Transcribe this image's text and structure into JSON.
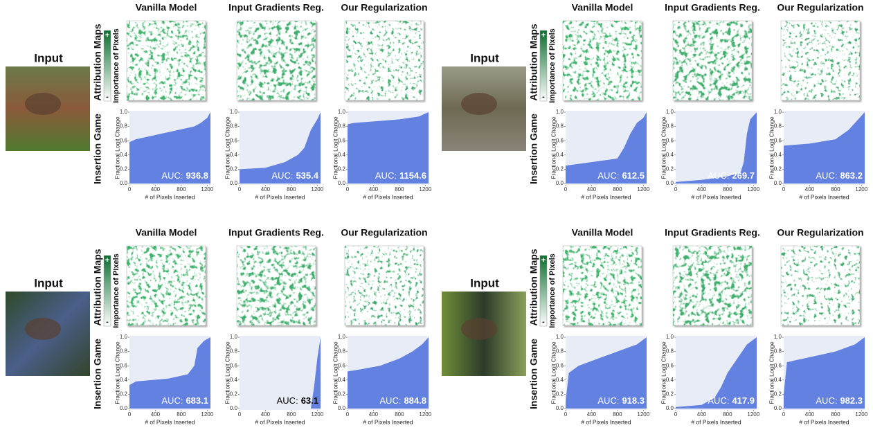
{
  "panels": [
    {
      "input": "Input",
      "attribution": "Attribution Maps",
      "insertion": "Insertion Game",
      "colorbar": "Importance of Pixels",
      "plus": "+",
      "minus": "-"
    },
    {
      "input": "Input",
      "attribution": "Attribution Maps",
      "insertion": "Insertion Game",
      "colorbar": "Importance of Pixels",
      "plus": "+",
      "minus": "-"
    },
    {
      "input": "Input",
      "attribution": "Attribution Maps",
      "insertion": "Insertion Game",
      "colorbar": "Importance of Pixels",
      "plus": "+",
      "minus": "-"
    },
    {
      "input": "Input",
      "attribution": "Attribution Maps",
      "insertion": "Insertion Game",
      "colorbar": "Importance of Pixels",
      "plus": "+",
      "minus": "-"
    }
  ],
  "chart_data": [
    {
      "type": "area",
      "title": "Vanilla Model",
      "x": [
        0,
        100,
        400,
        800,
        1000,
        1100,
        1200,
        1250
      ],
      "values": [
        0.58,
        0.62,
        0.68,
        0.76,
        0.8,
        0.85,
        0.92,
        1.0
      ],
      "color": "#6281e0",
      "xlim": [
        0,
        1250
      ],
      "ylim": [
        -0.02,
        1.02
      ],
      "xticks": [
        0,
        400,
        800,
        1200
      ],
      "yticks": [
        {
          "value": 0,
          "label": "0.0"
        },
        0.2,
        0.4,
        0.6,
        0.8,
        {
          "value": 1,
          "label": "1.0"
        }
      ],
      "xlabel": "# of Pixels Inserted",
      "ylabel": "Fractional Logit Change",
      "annotation_label": "AUC:",
      "annotation": 936.8,
      "annotation_color": "#ffffff"
    },
    {
      "type": "area",
      "title": "Input Gradients Reg.",
      "x": [
        0,
        400,
        700,
        900,
        1000,
        1100,
        1200,
        1250
      ],
      "values": [
        0.2,
        0.22,
        0.3,
        0.4,
        0.5,
        0.75,
        0.9,
        1.0
      ],
      "color": "#6281e0",
      "xlim": [
        0,
        1250
      ],
      "ylim": [
        -0.02,
        1.02
      ],
      "xticks": [
        0,
        400,
        800,
        1200
      ],
      "yticks": [
        {
          "value": 0,
          "label": "0.0"
        },
        0.2,
        0.4,
        0.6,
        0.8,
        {
          "value": 1,
          "label": "1.0"
        }
      ],
      "xlabel": "# of Pixels Inserted",
      "ylabel": "Fractional Logit Change",
      "annotation_label": "AUC:",
      "annotation": 535.4,
      "annotation_color": "#ffffff"
    },
    {
      "type": "area",
      "title": "Our Regularization",
      "x": [
        0,
        100,
        400,
        800,
        1100,
        1250
      ],
      "values": [
        0.83,
        0.85,
        0.87,
        0.9,
        0.94,
        1.0
      ],
      "color": "#6281e0",
      "xlim": [
        0,
        1250
      ],
      "ylim": [
        -0.02,
        1.02
      ],
      "xticks": [
        0,
        400,
        800,
        1200
      ],
      "yticks": [
        {
          "value": 0,
          "label": "0.0"
        },
        0.2,
        0.4,
        0.6,
        0.8,
        {
          "value": 1,
          "label": "1.0"
        }
      ],
      "xlabel": "# of Pixels Inserted",
      "ylabel": "Fractional Logit Change",
      "annotation_label": "AUC:",
      "annotation": 1154.6,
      "annotation_color": "#ffffff"
    },
    {
      "type": "area",
      "title": "Vanilla Model",
      "x": [
        0,
        400,
        800,
        900,
        1000,
        1100,
        1200,
        1250
      ],
      "values": [
        0.25,
        0.3,
        0.35,
        0.5,
        0.7,
        0.85,
        0.92,
        1.0
      ],
      "color": "#6281e0",
      "xlim": [
        0,
        1250
      ],
      "ylim": [
        -0.02,
        1.02
      ],
      "xticks": [
        0,
        400,
        800,
        1200
      ],
      "yticks": [
        {
          "value": 0,
          "label": "0.0"
        },
        0.2,
        0.4,
        0.6,
        0.8,
        {
          "value": 1,
          "label": "1.0"
        }
      ],
      "xlabel": "# of Pixels Inserted",
      "ylabel": "Fractional Logit Change",
      "annotation_label": "AUC:",
      "annotation": 612.5,
      "annotation_color": "#ffffff"
    },
    {
      "type": "area",
      "title": "Input Gradients Reg.",
      "x": [
        0,
        400,
        800,
        1000,
        1050,
        1100,
        1150,
        1250
      ],
      "values": [
        0.02,
        0.05,
        0.1,
        0.15,
        0.3,
        0.7,
        0.9,
        1.0
      ],
      "color": "#6281e0",
      "xlim": [
        0,
        1250
      ],
      "ylim": [
        -0.02,
        1.02
      ],
      "xticks": [
        0,
        400,
        800,
        1200
      ],
      "yticks": [
        {
          "value": 0,
          "label": "0.0"
        },
        0.2,
        0.4,
        0.6,
        0.8,
        {
          "value": 1,
          "label": "1.0"
        }
      ],
      "xlabel": "# of Pixels Inserted",
      "ylabel": "Fractional Logit Change",
      "annotation_label": "AUC:",
      "annotation": 269.7,
      "annotation_color": "#ffffff"
    },
    {
      "type": "area",
      "title": "Our Regularization",
      "x": [
        0,
        400,
        800,
        1000,
        1100,
        1200,
        1250
      ],
      "values": [
        0.53,
        0.56,
        0.62,
        0.75,
        0.85,
        0.95,
        1.0
      ],
      "color": "#6281e0",
      "xlim": [
        0,
        1250
      ],
      "ylim": [
        -0.02,
        1.02
      ],
      "xticks": [
        0,
        400,
        800,
        1200
      ],
      "yticks": [
        {
          "value": 0,
          "label": "0.0"
        },
        0.2,
        0.4,
        0.6,
        0.8,
        {
          "value": 1,
          "label": "1.0"
        }
      ],
      "xlabel": "# of Pixels Inserted",
      "ylabel": "Fractional Logit Change",
      "annotation_label": "AUC:",
      "annotation": 863.2,
      "annotation_color": "#ffffff"
    },
    {
      "type": "area",
      "title": "Vanilla Model",
      "x": [
        0,
        100,
        600,
        900,
        1000,
        1050,
        1150,
        1250
      ],
      "values": [
        0.33,
        0.38,
        0.42,
        0.48,
        0.6,
        0.85,
        0.95,
        1.0
      ],
      "color": "#6281e0",
      "xlim": [
        0,
        1250
      ],
      "ylim": [
        -0.02,
        1.02
      ],
      "xticks": [
        0,
        400,
        800,
        1200
      ],
      "yticks": [
        {
          "value": 0,
          "label": "0.0"
        },
        0.2,
        0.4,
        0.6,
        0.8,
        {
          "value": 1,
          "label": "1.0"
        }
      ],
      "xlabel": "# of Pixels Inserted",
      "ylabel": "Fractional Logit Change",
      "annotation_label": "AUC:",
      "annotation": 683.1,
      "annotation_color": "#ffffff"
    },
    {
      "type": "area",
      "title": "Input Gradients Reg.",
      "x": [
        0,
        1100,
        1150,
        1200,
        1250
      ],
      "values": [
        0,
        0,
        0.3,
        0.7,
        1.0
      ],
      "color": "#6281e0",
      "xlim": [
        0,
        1250
      ],
      "ylim": [
        -0.02,
        1.02
      ],
      "xticks": [
        0,
        400,
        800,
        1200
      ],
      "yticks": [
        {
          "value": 0,
          "label": "0.0"
        },
        0.2,
        0.4,
        0.6,
        0.8,
        {
          "value": 1,
          "label": "1.0"
        }
      ],
      "xlabel": "# of Pixels Inserted",
      "ylabel": "Fractional Logit Change",
      "annotation_label": "AUC:",
      "annotation": 63.1,
      "annotation_color": "#000000"
    },
    {
      "type": "area",
      "title": "Our Regularization",
      "x": [
        0,
        200,
        500,
        800,
        1000,
        1150,
        1250
      ],
      "values": [
        0.52,
        0.55,
        0.6,
        0.7,
        0.8,
        0.9,
        1.0
      ],
      "color": "#6281e0",
      "xlim": [
        0,
        1250
      ],
      "ylim": [
        -0.02,
        1.02
      ],
      "xticks": [
        0,
        400,
        800,
        1200
      ],
      "yticks": [
        {
          "value": 0,
          "label": "0.0"
        },
        0.2,
        0.4,
        0.6,
        0.8,
        {
          "value": 1,
          "label": "1.0"
        }
      ],
      "xlabel": "# of Pixels Inserted",
      "ylabel": "Fractional Logit Change",
      "annotation_label": "AUC:",
      "annotation": 884.8,
      "annotation_color": "#ffffff"
    },
    {
      "type": "area",
      "title": "Vanilla Model",
      "x": [
        0,
        50,
        200,
        500,
        800,
        1100,
        1250
      ],
      "values": [
        0.1,
        0.5,
        0.6,
        0.7,
        0.8,
        0.9,
        1.0
      ],
      "color": "#6281e0",
      "xlim": [
        0,
        1250
      ],
      "ylim": [
        -0.02,
        1.02
      ],
      "xticks": [
        0,
        400,
        800,
        1200
      ],
      "yticks": [
        {
          "value": 0,
          "label": "0.0"
        },
        0.2,
        0.4,
        0.6,
        0.8,
        {
          "value": 1,
          "label": "1.0"
        }
      ],
      "xlabel": "# of Pixels Inserted",
      "ylabel": "Fractional Logit Change",
      "annotation_label": "AUC:",
      "annotation": 918.3,
      "annotation_color": "#ffffff"
    },
    {
      "type": "area",
      "title": "Input Gradients Reg.",
      "x": [
        0,
        400,
        600,
        700,
        800,
        950,
        1100,
        1250
      ],
      "values": [
        0.02,
        0.05,
        0.15,
        0.3,
        0.5,
        0.7,
        0.9,
        1.0
      ],
      "color": "#6281e0",
      "xlim": [
        0,
        1250
      ],
      "ylim": [
        -0.02,
        1.02
      ],
      "xticks": [
        0,
        400,
        800,
        1200
      ],
      "yticks": [
        {
          "value": 0,
          "label": "0.0"
        },
        0.2,
        0.4,
        0.6,
        0.8,
        {
          "value": 1,
          "label": "1.0"
        }
      ],
      "xlabel": "# of Pixels Inserted",
      "ylabel": "Fractional Logit Change",
      "annotation_label": "AUC:",
      "annotation": 417.9,
      "annotation_color": "#ffffff"
    },
    {
      "type": "area",
      "title": "Our Regularization",
      "x": [
        0,
        50,
        400,
        800,
        1100,
        1250
      ],
      "values": [
        0.2,
        0.65,
        0.72,
        0.8,
        0.9,
        1.0
      ],
      "color": "#6281e0",
      "xlim": [
        0,
        1250
      ],
      "ylim": [
        -0.02,
        1.02
      ],
      "xticks": [
        0,
        400,
        800,
        1200
      ],
      "yticks": [
        {
          "value": 0,
          "label": "0.0"
        },
        0.2,
        0.4,
        0.6,
        0.8,
        {
          "value": 1,
          "label": "1.0"
        }
      ],
      "xlabel": "# of Pixels Inserted",
      "ylabel": "Fractional Logit Change",
      "annotation_label": "AUC:",
      "annotation": 982.3,
      "annotation_color": "#ffffff"
    }
  ]
}
